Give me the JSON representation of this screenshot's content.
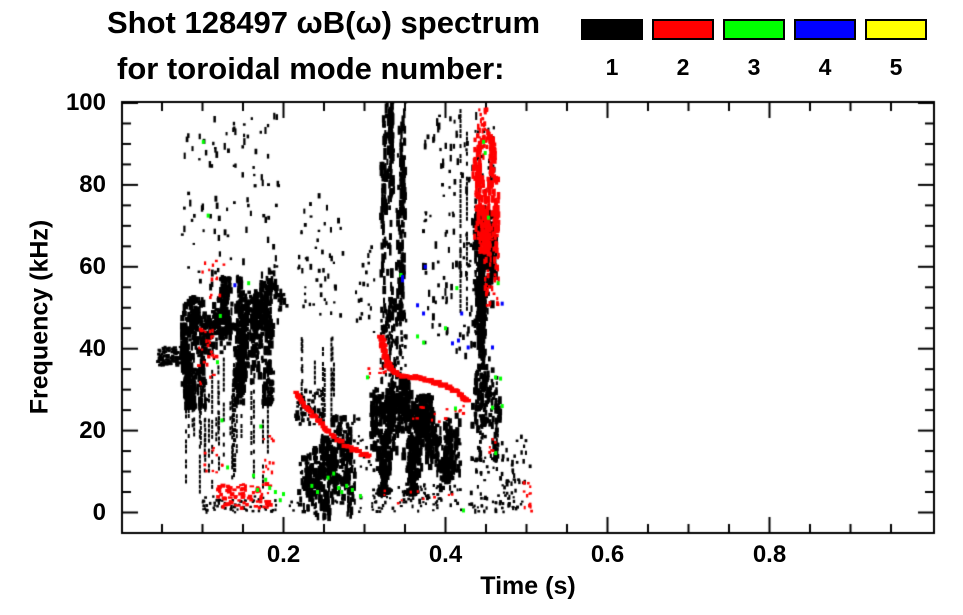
{
  "title": {
    "line1": "Shot 128497 ωB(ω) spectrum",
    "line2": "for toroidal mode number:"
  },
  "legend": {
    "modes": [
      {
        "label": "1",
        "color": "#000000"
      },
      {
        "label": "2",
        "color": "#ff0000"
      },
      {
        "label": "3",
        "color": "#00ff00"
      },
      {
        "label": "4",
        "color": "#0000ff"
      },
      {
        "label": "5",
        "color": "#ffff00"
      }
    ]
  },
  "chart_data": {
    "type": "scatter",
    "subtype": "mode-spectrogram",
    "title": "Shot 128497 ωB(ω) spectrum for toroidal mode number: 1 2 3 4 5",
    "xlabel": "Time (s)",
    "ylabel": "Frequency (kHz)",
    "xlim": [
      0,
      1.0
    ],
    "ylim": [
      0,
      100
    ],
    "xticks": [
      0.2,
      0.4,
      0.6,
      0.8
    ],
    "xtick_labels": [
      "0.2",
      "0.4",
      "0.6",
      "0.8"
    ],
    "yticks": [
      0,
      20,
      40,
      60,
      80,
      100
    ],
    "ytick_labels": [
      "0",
      "20",
      "40",
      "60",
      "80",
      "100"
    ],
    "x_minor_step": 0.05,
    "y_minor_step": 5,
    "grid": false,
    "legend_position": "top-right",
    "seed": 12,
    "series": [
      {
        "mode": 1,
        "color": "#000000",
        "clusters": [
          {
            "kind": "specks",
            "t": [
              0.045,
              0.082
            ],
            "f": [
              36,
              40.5
            ],
            "n": 90,
            "dot": [
              2,
              5,
              2,
              4
            ]
          },
          {
            "kind": "blob",
            "t": [
              0.078,
              0.128
            ],
            "f": [
              28,
              50
            ],
            "n": 420,
            "dot": [
              2,
              5,
              3,
              9
            ],
            "lumps": 10
          },
          {
            "kind": "blob",
            "t": [
              0.125,
              0.185
            ],
            "f": [
              29,
              55
            ],
            "n": 520,
            "dot": [
              2,
              5,
              3,
              9
            ],
            "lumps": 12
          },
          {
            "kind": "blob",
            "t": [
              0.158,
              0.202
            ],
            "f": [
              46,
              58
            ],
            "n": 160,
            "dot": [
              2,
              4,
              3,
              8
            ],
            "lumps": 6
          },
          {
            "kind": "vlines",
            "t": [
              0.07,
              0.185
            ],
            "fb": [
              3,
              22
            ],
            "ft": [
              24,
              38
            ],
            "n": 26
          },
          {
            "kind": "specks",
            "t": [
              0.075,
              0.195
            ],
            "f": [
              55,
              97
            ],
            "n": 95,
            "dot": [
              2,
              3,
              2,
              7
            ]
          },
          {
            "kind": "specks",
            "t": [
              0.1,
              0.19
            ],
            "f": [
              0,
              4
            ],
            "n": 45,
            "dot": [
              2,
              3,
              2,
              3
            ]
          },
          {
            "kind": "blob",
            "t": [
              0.215,
              0.285
            ],
            "f": [
              1,
              21
            ],
            "n": 400,
            "dot": [
              2,
              5,
              3,
              9
            ],
            "lumps": 9
          },
          {
            "kind": "specks",
            "t": [
              0.215,
              0.25
            ],
            "f": [
              21,
              30
            ],
            "n": 70,
            "dot": [
              2,
              4,
              2,
              5
            ]
          },
          {
            "kind": "vlines",
            "t": [
              0.22,
              0.27
            ],
            "fb": [
              22,
              30
            ],
            "ft": [
              33,
              46
            ],
            "n": 8
          },
          {
            "kind": "specks",
            "t": [
              0.218,
              0.275
            ],
            "f": [
              48,
              78
            ],
            "n": 48,
            "dot": [
              2,
              3,
              2,
              6
            ]
          },
          {
            "kind": "specks",
            "t": [
              0.288,
              0.312
            ],
            "f": [
              44,
              66
            ],
            "n": 20,
            "dot": [
              2,
              3,
              2,
              5
            ]
          },
          {
            "kind": "specks",
            "t": [
              0.265,
              0.315
            ],
            "f": [
              2,
              24
            ],
            "n": 30,
            "dot": [
              2,
              3,
              2,
              4
            ]
          },
          {
            "kind": "blob",
            "t": [
              0.312,
              0.363
            ],
            "f": [
              7,
              30
            ],
            "n": 520,
            "dot": [
              2,
              5,
              3,
              10
            ],
            "lumps": 9
          },
          {
            "kind": "blob",
            "t": [
              0.358,
              0.418
            ],
            "f": [
              8,
              26
            ],
            "n": 460,
            "dot": [
              2,
              5,
              3,
              10
            ],
            "lumps": 8
          },
          {
            "kind": "specks",
            "t": [
              0.31,
              0.42
            ],
            "f": [
              1,
              7
            ],
            "n": 70,
            "dot": [
              2,
              3,
              2,
              4
            ]
          },
          {
            "kind": "blob",
            "t": [
              0.322,
              0.35
            ],
            "f": [
              50,
              100
            ],
            "n": 300,
            "dot": [
              2,
              4,
              4,
              12
            ],
            "lumps": 10
          },
          {
            "kind": "specks",
            "t": [
              0.32,
              0.352
            ],
            "f": [
              32,
              52
            ],
            "n": 110,
            "dot": [
              2,
              3,
              3,
              8
            ]
          },
          {
            "kind": "specks",
            "t": [
              0.372,
              0.438
            ],
            "f": [
              38,
              97
            ],
            "n": 110,
            "dot": [
              2,
              3,
              2,
              8
            ]
          },
          {
            "kind": "vlines",
            "t": [
              0.418,
              0.428
            ],
            "fb": [
              45,
              55
            ],
            "ft": [
              90,
              100
            ],
            "n": 2
          },
          {
            "kind": "blob",
            "t": [
              0.435,
              0.466
            ],
            "f": [
              42,
              71
            ],
            "n": 330,
            "dot": [
              2,
              5,
              3,
              10
            ],
            "lumps": 8
          },
          {
            "kind": "blob",
            "t": [
              0.436,
              0.468
            ],
            "f": [
              15,
              42
            ],
            "n": 200,
            "dot": [
              2,
              4,
              3,
              8
            ],
            "lumps": 7
          },
          {
            "kind": "specks",
            "t": [
              0.436,
              0.462
            ],
            "f": [
              72,
              94
            ],
            "n": 40,
            "dot": [
              2,
              3,
              2,
              6
            ]
          },
          {
            "kind": "specks",
            "t": [
              0.43,
              0.49
            ],
            "f": [
              0,
              14
            ],
            "n": 70,
            "dot": [
              2,
              3,
              2,
              5
            ]
          },
          {
            "kind": "specks",
            "t": [
              0.1,
              0.5
            ],
            "f": [
              0,
              3.5
            ],
            "n": 80,
            "dot": [
              2,
              3,
              2,
              3
            ]
          },
          {
            "kind": "specks",
            "t": [
              0.47,
              0.505
            ],
            "f": [
              2,
              20
            ],
            "n": 26,
            "dot": [
              2,
              3,
              2,
              5
            ]
          }
        ]
      },
      {
        "mode": 2,
        "color": "#ff0000",
        "clusters": [
          {
            "kind": "specks",
            "t": [
              0.095,
              0.118
            ],
            "f": [
              31,
              45
            ],
            "n": 26,
            "dot": [
              2,
              4,
              2,
              4
            ]
          },
          {
            "kind": "specks",
            "t": [
              0.1,
              0.135
            ],
            "f": [
              51,
              62
            ],
            "n": 12,
            "dot": [
              2,
              3,
              2,
              4
            ]
          },
          {
            "kind": "specks",
            "t": [
              0.118,
              0.185
            ],
            "f": [
              1,
              7
            ],
            "n": 75,
            "dot": [
              3,
              5,
              2,
              4
            ]
          },
          {
            "kind": "specks",
            "t": [
              0.1,
              0.125
            ],
            "f": [
              8,
              16
            ],
            "n": 10,
            "dot": [
              2,
              3,
              2,
              3
            ]
          },
          {
            "kind": "specks",
            "t": [
              0.172,
              0.188
            ],
            "f": [
              4,
              20
            ],
            "n": 14,
            "dot": [
              2,
              3,
              2,
              4
            ]
          },
          {
            "kind": "specks",
            "t": [
              0.319,
              0.327
            ],
            "f": [
              34,
              43
            ],
            "n": 14,
            "dot": [
              2,
              4,
              2,
              4
            ]
          },
          {
            "kind": "specks",
            "t": [
              0.36,
              0.428
            ],
            "f": [
              22,
              26
            ],
            "n": 14,
            "dot": [
              2,
              4,
              2,
              3
            ]
          },
          {
            "kind": "blob",
            "t": [
              0.437,
              0.463
            ],
            "f": [
              66,
              90
            ],
            "n": 300,
            "dot": [
              2,
              4,
              3,
              9
            ],
            "lumps": 8
          },
          {
            "kind": "specks",
            "t": [
              0.439,
              0.452
            ],
            "f": [
              89,
              99
            ],
            "n": 30,
            "dot": [
              2,
              3,
              2,
              6
            ]
          },
          {
            "kind": "specks",
            "t": [
              0.448,
              0.466
            ],
            "f": [
              50,
              68
            ],
            "n": 45,
            "dot": [
              2,
              3,
              2,
              6
            ]
          },
          {
            "kind": "specks",
            "t": [
              0.452,
              0.462
            ],
            "f": [
              14,
              19
            ],
            "n": 6,
            "dot": [
              2,
              3,
              2,
              3
            ]
          },
          {
            "kind": "specks",
            "t": [
              0.495,
              0.507
            ],
            "f": [
              0,
              9
            ],
            "n": 12,
            "dot": [
              2,
              3,
              2,
              4
            ]
          },
          {
            "kind": "specks",
            "t": [
              0.31,
              0.44
            ],
            "f": [
              2,
              6
            ],
            "n": 10,
            "dot": [
              2,
              3,
              2,
              3
            ]
          },
          {
            "kind": "specks",
            "t": [
              0.303,
              0.317
            ],
            "f": [
              33,
              36
            ],
            "n": 3,
            "dot": [
              2,
              3,
              2,
              3
            ]
          }
        ],
        "curves": [
          {
            "pts": [
              [
                0.215,
                29
              ],
              [
                0.235,
                24
              ],
              [
                0.252,
                20.5
              ],
              [
                0.272,
                17
              ],
              [
                0.295,
                14.5
              ],
              [
                0.308,
                13.5
              ]
            ],
            "n": 42,
            "dash": [
              4,
              3
            ],
            "jitter": 2
          },
          {
            "pts": [
              [
                0.32,
                43
              ],
              [
                0.326,
                38
              ],
              [
                0.332,
                35
              ],
              [
                0.345,
                33.5
              ],
              [
                0.375,
                32.5
              ],
              [
                0.4,
                31
              ],
              [
                0.415,
                29.5
              ],
              [
                0.428,
                27
              ]
            ],
            "n": 70,
            "dash": [
              5,
              3
            ],
            "jitter": 1.5
          }
        ]
      },
      {
        "mode": 3,
        "color": "#00ff00",
        "points": [
          [
            0.101,
            90.5
          ],
          [
            0.107,
            72.5
          ],
          [
            0.1185,
            36.7
          ],
          [
            0.122,
            48
          ],
          [
            0.124,
            22.5
          ],
          [
            0.131,
            11
          ],
          [
            0.157,
            56
          ],
          [
            0.163,
            9
          ],
          [
            0.168,
            5.5
          ],
          [
            0.172,
            21
          ],
          [
            0.178,
            8
          ],
          [
            0.183,
            6
          ],
          [
            0.19,
            5
          ],
          [
            0.196,
            3
          ],
          [
            0.2,
            4.5
          ],
          [
            0.235,
            6.5
          ],
          [
            0.242,
            5
          ],
          [
            0.255,
            8.5
          ],
          [
            0.262,
            9.5
          ],
          [
            0.268,
            6
          ],
          [
            0.272,
            5
          ],
          [
            0.278,
            6.5
          ],
          [
            0.285,
            5.5
          ],
          [
            0.295,
            4
          ],
          [
            0.3037,
            33
          ],
          [
            0.345,
            58
          ],
          [
            0.3655,
            43
          ],
          [
            0.373,
            41.5
          ],
          [
            0.4,
            45
          ],
          [
            0.4123,
            25.4
          ],
          [
            0.414,
            54.8
          ],
          [
            0.4222,
            0.5
          ],
          [
            0.447,
            90.5
          ],
          [
            0.449,
            87.8
          ],
          [
            0.453,
            72
          ],
          [
            0.458,
            25.6
          ],
          [
            0.4617,
            33
          ],
          [
            0.462,
            14.5
          ],
          [
            0.465,
            56
          ],
          [
            0.468,
            32.7
          ],
          [
            0.47,
            26
          ]
        ]
      },
      {
        "mode": 4,
        "color": "#0000ff",
        "points": [
          [
            0.14,
            55.5
          ],
          [
            0.3469,
            57.5
          ],
          [
            0.347,
            56.7
          ],
          [
            0.3655,
            50.6
          ],
          [
            0.3729,
            48.6
          ],
          [
            0.375,
            60
          ],
          [
            0.4086,
            41.3
          ],
          [
            0.416,
            42
          ],
          [
            0.42,
            48.6
          ],
          [
            0.428,
            40.3
          ],
          [
            0.458,
            40.3
          ],
          [
            0.47,
            51
          ]
        ]
      },
      {
        "mode": 5,
        "color": "#ffff00",
        "points": []
      }
    ]
  }
}
